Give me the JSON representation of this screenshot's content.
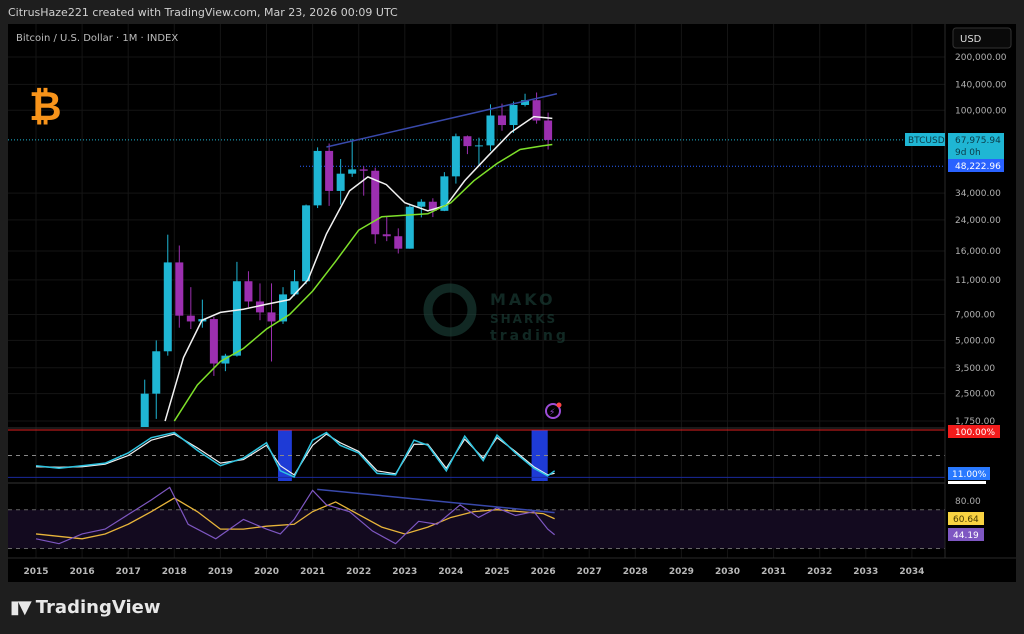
{
  "header": {
    "created_by": "CitrusHaze221 created with TradingView.com, Mar 23, 2026 00:09 UTC"
  },
  "chart": {
    "symbol_title": "Bitcoin / U.S. Dollar · 1M · INDEX",
    "currency_button": "USD",
    "watermark": {
      "line1": "MAKO",
      "line2": "SHARKS",
      "line3": "trading"
    },
    "colors": {
      "up": "#1fb6d4",
      "down": "#9c2fb0",
      "ma_fast": "#f2f2f2",
      "ma_slow": "#7ee02a",
      "trendline": "#3949ab",
      "accent_btc": "#f7931a"
    },
    "price_labels": {
      "symbol": "BTCUSD",
      "last_price": "67,975.94",
      "countdown": "9d 0h",
      "level": "48,222.96"
    },
    "osc_labels": {
      "upper": "100.00%",
      "lower": "11.00%"
    },
    "rsi_labels": {
      "tick": "80.00",
      "ma": "60.64",
      "rsi": "44.19"
    }
  },
  "chart_data": {
    "type": "candlestick",
    "scale": "log",
    "x_ticks": [
      "2015",
      "2016",
      "2017",
      "2018",
      "2019",
      "2020",
      "2021",
      "2022",
      "2023",
      "2024",
      "2025",
      "2026",
      "2027",
      "2028",
      "2029",
      "2030",
      "2031",
      "2032",
      "2033",
      "2034"
    ],
    "y_ticks": [
      "200,000.00",
      "140,000.00",
      "100,000.00",
      "34,000.00",
      "24,000.00",
      "16,000.00",
      "11,000.00",
      "7,000.00",
      "5,000.00",
      "3,500.00",
      "2,500.00",
      "1,750.00"
    ],
    "y_tick_values": [
      200000,
      140000,
      100000,
      34000,
      24000,
      16000,
      11000,
      7000,
      5000,
      3500,
      2500,
      1750
    ],
    "ylim": [
      1750,
      200000
    ],
    "candles_quarterly": [
      [
        2017.0,
        1000,
        1300,
        750,
        1080
      ],
      [
        2017.25,
        1080,
        3000,
        1000,
        2500
      ],
      [
        2017.5,
        2500,
        5000,
        1800,
        4340
      ],
      [
        2017.75,
        4340,
        19800,
        4100,
        13800
      ],
      [
        2018.0,
        13800,
        17200,
        5900,
        6900
      ],
      [
        2018.25,
        6900,
        10000,
        5800,
        6400
      ],
      [
        2018.5,
        6400,
        8500,
        5900,
        6600
      ],
      [
        2018.75,
        6600,
        6800,
        3150,
        3700
      ],
      [
        2019.0,
        3700,
        4200,
        3350,
        4100
      ],
      [
        2019.25,
        4100,
        13900,
        4050,
        10800
      ],
      [
        2019.5,
        10800,
        12300,
        7700,
        8300
      ],
      [
        2019.75,
        8300,
        10500,
        6500,
        7200
      ],
      [
        2020.0,
        7200,
        10500,
        3800,
        6400
      ],
      [
        2020.25,
        6400,
        10000,
        6200,
        9100
      ],
      [
        2020.5,
        9100,
        12500,
        8900,
        10800
      ],
      [
        2020.75,
        10800,
        29300,
        10400,
        29000
      ],
      [
        2021.0,
        29000,
        61700,
        28000,
        58900
      ],
      [
        2021.25,
        58900,
        64900,
        28800,
        35000
      ],
      [
        2021.5,
        35000,
        53000,
        29300,
        43800
      ],
      [
        2021.75,
        43800,
        69000,
        42000,
        46300
      ],
      [
        2022.0,
        46300,
        48200,
        32900,
        45500
      ],
      [
        2022.25,
        45500,
        47400,
        17600,
        19900
      ],
      [
        2022.5,
        19900,
        25200,
        18200,
        19400
      ],
      [
        2022.75,
        19400,
        21500,
        15500,
        16500
      ],
      [
        2023.0,
        16500,
        29200,
        16500,
        28500
      ],
      [
        2023.25,
        28500,
        31400,
        24800,
        30400
      ],
      [
        2023.5,
        30400,
        31800,
        24900,
        27000
      ],
      [
        2023.75,
        27000,
        44700,
        26900,
        42300
      ],
      [
        2024.0,
        42300,
        73800,
        38500,
        71300
      ],
      [
        2024.25,
        71300,
        72000,
        56500,
        62700
      ],
      [
        2024.5,
        62700,
        70000,
        49000,
        63300
      ],
      [
        2024.75,
        63300,
        108000,
        58900,
        93400
      ],
      [
        2025.0,
        93400,
        109000,
        76600,
        82500
      ],
      [
        2025.25,
        82500,
        112000,
        74500,
        107100
      ],
      [
        2025.5,
        107100,
        124000,
        105000,
        114000
      ],
      [
        2025.75,
        114000,
        126000,
        84000,
        87500
      ],
      [
        2026.0,
        87500,
        97000,
        60000,
        67976
      ]
    ],
    "ma_fast": [
      [
        2017.8,
        1750
      ],
      [
        2018.2,
        4000
      ],
      [
        2018.6,
        6500
      ],
      [
        2019.0,
        7200
      ],
      [
        2019.5,
        7500
      ],
      [
        2020.0,
        8000
      ],
      [
        2020.5,
        8500
      ],
      [
        2020.9,
        11000
      ],
      [
        2021.3,
        20000
      ],
      [
        2021.8,
        35000
      ],
      [
        2022.2,
        42000
      ],
      [
        2022.6,
        38000
      ],
      [
        2023.0,
        30000
      ],
      [
        2023.5,
        27000
      ],
      [
        2023.9,
        29000
      ],
      [
        2024.3,
        40000
      ],
      [
        2024.8,
        55000
      ],
      [
        2025.3,
        75000
      ],
      [
        2025.8,
        92000
      ],
      [
        2026.2,
        90000
      ]
    ],
    "ma_slow": [
      [
        2018.0,
        1750
      ],
      [
        2018.5,
        2800
      ],
      [
        2019.0,
        3800
      ],
      [
        2019.5,
        4500
      ],
      [
        2020.0,
        5800
      ],
      [
        2020.5,
        7000
      ],
      [
        2021.0,
        9500
      ],
      [
        2021.5,
        14000
      ],
      [
        2022.0,
        21000
      ],
      [
        2022.5,
        25000
      ],
      [
        2023.0,
        25500
      ],
      [
        2023.5,
        26000
      ],
      [
        2024.0,
        30000
      ],
      [
        2024.5,
        40000
      ],
      [
        2025.0,
        50000
      ],
      [
        2025.5,
        60000
      ],
      [
        2026.0,
        63000
      ],
      [
        2026.2,
        64000
      ]
    ],
    "trendline": [
      [
        2021.3,
        62000
      ],
      [
        2026.3,
        124000
      ]
    ],
    "h_levels": [
      67975.94,
      48222.96
    ],
    "oscillator": {
      "ylim": [
        0,
        100
      ],
      "k": [
        [
          2015,
          30
        ],
        [
          2015.5,
          25
        ],
        [
          2016,
          30
        ],
        [
          2016.5,
          35
        ],
        [
          2017,
          55
        ],
        [
          2017.5,
          85
        ],
        [
          2018,
          95
        ],
        [
          2018.5,
          60
        ],
        [
          2019,
          30
        ],
        [
          2019.5,
          45
        ],
        [
          2020,
          75
        ],
        [
          2020.3,
          20
        ],
        [
          2020.6,
          8
        ],
        [
          2021,
          80
        ],
        [
          2021.3,
          95
        ],
        [
          2021.6,
          70
        ],
        [
          2022,
          55
        ],
        [
          2022.4,
          15
        ],
        [
          2022.8,
          12
        ],
        [
          2023.2,
          80
        ],
        [
          2023.5,
          70
        ],
        [
          2023.9,
          20
        ],
        [
          2024.3,
          88
        ],
        [
          2024.7,
          40
        ],
        [
          2025.0,
          90
        ],
        [
          2025.4,
          55
        ],
        [
          2025.8,
          25
        ],
        [
          2026.1,
          10
        ],
        [
          2026.25,
          20
        ]
      ],
      "d": [
        [
          2015,
          28
        ],
        [
          2015.5,
          27
        ],
        [
          2016,
          28
        ],
        [
          2016.5,
          33
        ],
        [
          2017,
          50
        ],
        [
          2017.5,
          80
        ],
        [
          2018,
          92
        ],
        [
          2018.5,
          65
        ],
        [
          2019,
          35
        ],
        [
          2019.5,
          42
        ],
        [
          2020,
          70
        ],
        [
          2020.3,
          30
        ],
        [
          2020.6,
          12
        ],
        [
          2021,
          70
        ],
        [
          2021.3,
          92
        ],
        [
          2021.6,
          75
        ],
        [
          2022,
          58
        ],
        [
          2022.4,
          20
        ],
        [
          2022.8,
          14
        ],
        [
          2023.2,
          72
        ],
        [
          2023.5,
          72
        ],
        [
          2023.9,
          25
        ],
        [
          2024.3,
          82
        ],
        [
          2024.7,
          45
        ],
        [
          2025.0,
          85
        ],
        [
          2025.4,
          58
        ],
        [
          2025.8,
          28
        ],
        [
          2026.1,
          12
        ],
        [
          2026.25,
          15
        ]
      ],
      "upper": 100,
      "lower": 11,
      "mid": 50,
      "shaded": [
        [
          2020.25,
          2020.55
        ],
        [
          2025.75,
          2026.1
        ]
      ]
    },
    "rsi": {
      "ylim": [
        25,
        95
      ],
      "rsi": [
        [
          2015,
          40
        ],
        [
          2015.5,
          35
        ],
        [
          2016,
          45
        ],
        [
          2016.5,
          50
        ],
        [
          2017,
          65
        ],
        [
          2017.5,
          80
        ],
        [
          2017.9,
          93
        ],
        [
          2018.3,
          55
        ],
        [
          2018.9,
          40
        ],
        [
          2019.5,
          60
        ],
        [
          2020,
          50
        ],
        [
          2020.3,
          45
        ],
        [
          2020.6,
          60
        ],
        [
          2021,
          90
        ],
        [
          2021.3,
          75
        ],
        [
          2021.8,
          68
        ],
        [
          2022.3,
          48
        ],
        [
          2022.8,
          35
        ],
        [
          2023.3,
          58
        ],
        [
          2023.7,
          55
        ],
        [
          2024.2,
          75
        ],
        [
          2024.6,
          62
        ],
        [
          2025.0,
          72
        ],
        [
          2025.4,
          64
        ],
        [
          2025.8,
          68
        ],
        [
          2026.1,
          50
        ],
        [
          2026.25,
          44.19
        ]
      ],
      "ma": [
        [
          2015,
          45
        ],
        [
          2016,
          40
        ],
        [
          2016.5,
          45
        ],
        [
          2017,
          55
        ],
        [
          2017.5,
          68
        ],
        [
          2018,
          82
        ],
        [
          2018.5,
          68
        ],
        [
          2019,
          50
        ],
        [
          2019.5,
          50
        ],
        [
          2020,
          53
        ],
        [
          2020.6,
          55
        ],
        [
          2021,
          68
        ],
        [
          2021.5,
          78
        ],
        [
          2022,
          65
        ],
        [
          2022.5,
          52
        ],
        [
          2023,
          45
        ],
        [
          2023.5,
          52
        ],
        [
          2024,
          62
        ],
        [
          2024.5,
          68
        ],
        [
          2025,
          70
        ],
        [
          2025.5,
          68
        ],
        [
          2026,
          66
        ],
        [
          2026.25,
          60.64
        ]
      ],
      "levels": [
        80,
        70,
        30
      ],
      "divergence": [
        [
          2021.1,
          91
        ],
        [
          2026.25,
          67
        ]
      ]
    }
  }
}
